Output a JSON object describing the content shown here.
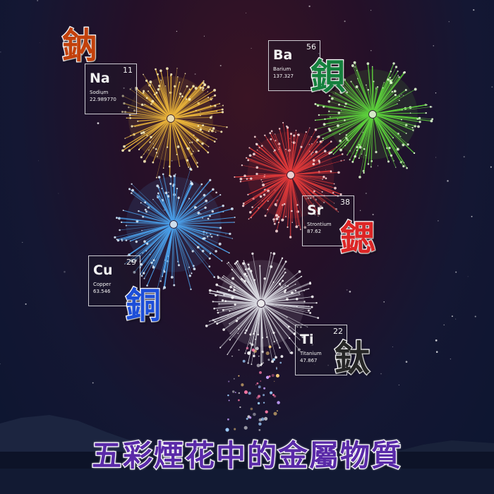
{
  "title": "五彩煙花中的金屬物質",
  "colors": {
    "sodium": "#e8b23a",
    "barium": "#5ccf3c",
    "strontium": "#e23a3a",
    "copper": "#4a9ee8",
    "titanium": "#d8d8e0",
    "title_fill": "#5a2aa8"
  },
  "elements": [
    {
      "key": "na",
      "hanzi": "鈉",
      "symbol": "Na",
      "number": "11",
      "name": "Sodium",
      "weight": "22.989770",
      "hanzi_color": "#c2410c"
    },
    {
      "key": "ba",
      "hanzi": "鋇",
      "symbol": "Ba",
      "number": "56",
      "name": "Barium",
      "weight": "137.327",
      "hanzi_color": "#15803d"
    },
    {
      "key": "sr",
      "hanzi": "鍶",
      "symbol": "Sr",
      "number": "38",
      "name": "Strontium",
      "weight": "87.62",
      "hanzi_color": "#dc2626"
    },
    {
      "key": "cu",
      "hanzi": "銅",
      "symbol": "Cu",
      "number": "29",
      "name": "Copper",
      "weight": "63.546",
      "hanzi_color": "#1d4ed8"
    },
    {
      "key": "ti",
      "hanzi": "鈦",
      "symbol": "Ti",
      "number": "22",
      "name": "Titanium",
      "weight": "47.867",
      "hanzi_color": "#262626"
    }
  ]
}
